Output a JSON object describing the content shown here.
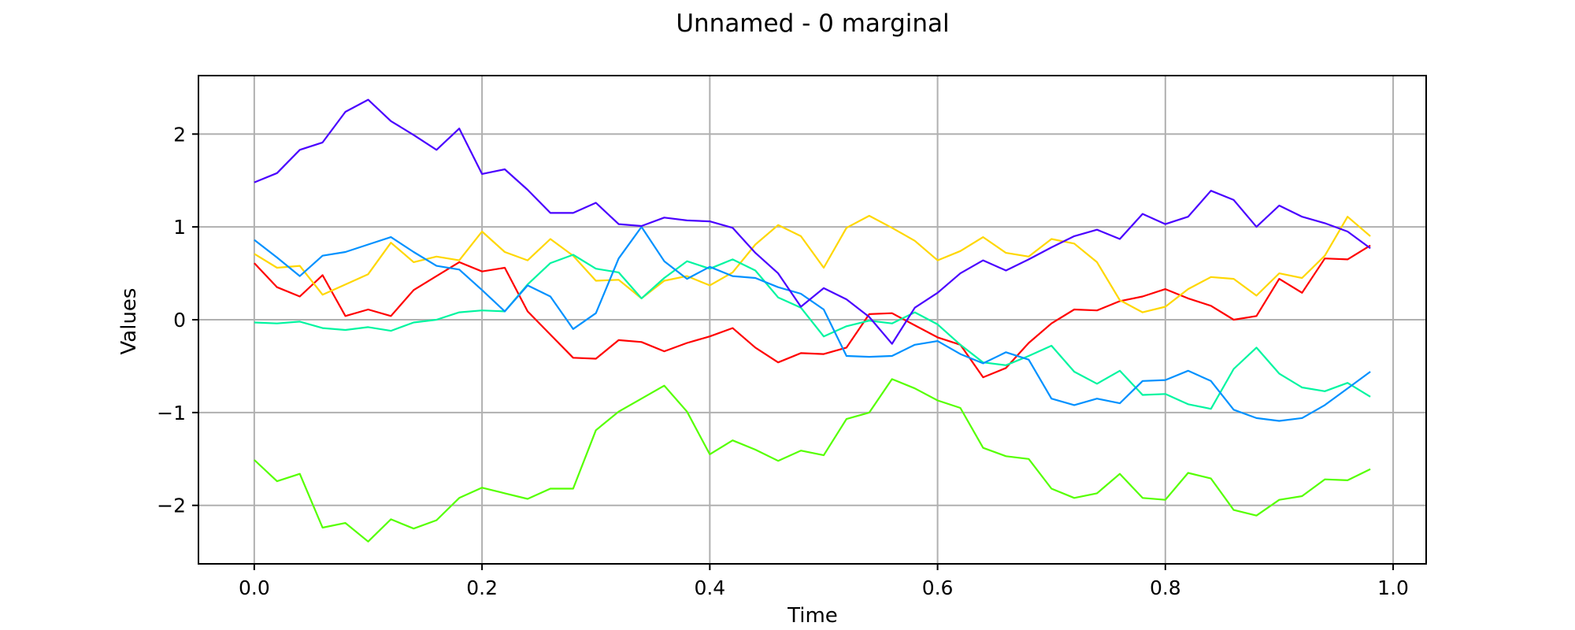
{
  "chart_data": {
    "type": "line",
    "title": "Unnamed - 0 marginal",
    "xlabel": "Time",
    "ylabel": "Values",
    "xlim": [
      -0.049,
      1.029
    ],
    "ylim": [
      -2.63,
      2.63
    ],
    "xticks": [
      0.0,
      0.2,
      0.4,
      0.6,
      0.8,
      1.0
    ],
    "xtick_labels": [
      "0.0",
      "0.2",
      "0.4",
      "0.6",
      "0.8",
      "1.0"
    ],
    "yticks": [
      -2,
      -1,
      0,
      1,
      2
    ],
    "ytick_labels": [
      "−2",
      "−1",
      "0",
      "1",
      "2"
    ],
    "grid": true,
    "legend": null,
    "x": [
      0.0,
      0.02,
      0.04,
      0.06,
      0.08,
      0.1,
      0.12,
      0.14,
      0.16,
      0.18,
      0.2,
      0.22,
      0.24,
      0.26,
      0.28,
      0.3,
      0.32,
      0.34,
      0.36,
      0.38,
      0.4,
      0.42,
      0.44,
      0.46,
      0.48,
      0.5,
      0.52,
      0.54,
      0.56,
      0.58,
      0.6,
      0.62,
      0.64,
      0.66,
      0.68,
      0.7,
      0.72,
      0.74,
      0.76,
      0.78,
      0.8,
      0.82,
      0.84,
      0.86,
      0.88,
      0.9,
      0.92,
      0.94,
      0.96,
      0.98
    ],
    "series": [
      {
        "color": "#ff0000",
        "values": [
          0.61,
          0.35,
          0.25,
          0.48,
          0.04,
          0.11,
          0.04,
          0.32,
          0.47,
          0.62,
          0.52,
          0.56,
          0.09,
          -0.16,
          -0.41,
          -0.42,
          -0.22,
          -0.24,
          -0.34,
          -0.25,
          -0.18,
          -0.09,
          -0.3,
          -0.46,
          -0.36,
          -0.37,
          -0.3,
          0.06,
          0.07,
          -0.06,
          -0.19,
          -0.27,
          -0.62,
          -0.52,
          -0.25,
          -0.04,
          0.11,
          0.1,
          0.2,
          0.25,
          0.33,
          0.23,
          0.15,
          0.0,
          0.04,
          0.44,
          0.29,
          0.66,
          0.65,
          0.8
        ]
      },
      {
        "color": "#ffd700",
        "values": [
          0.71,
          0.56,
          0.58,
          0.27,
          0.38,
          0.49,
          0.83,
          0.62,
          0.68,
          0.64,
          0.95,
          0.73,
          0.64,
          0.87,
          0.69,
          0.42,
          0.43,
          0.23,
          0.42,
          0.47,
          0.37,
          0.51,
          0.81,
          1.02,
          0.9,
          0.56,
          0.99,
          1.12,
          0.99,
          0.85,
          0.64,
          0.74,
          0.89,
          0.72,
          0.68,
          0.87,
          0.82,
          0.62,
          0.21,
          0.08,
          0.14,
          0.33,
          0.46,
          0.44,
          0.26,
          0.5,
          0.45,
          0.69,
          1.11,
          0.9
        ]
      },
      {
        "color": "#55ff00",
        "values": [
          -1.51,
          -1.74,
          -1.66,
          -2.24,
          -2.19,
          -2.39,
          -2.15,
          -2.25,
          -2.16,
          -1.92,
          -1.81,
          -1.87,
          -1.93,
          -1.82,
          -1.82,
          -1.19,
          -0.99,
          -0.85,
          -0.71,
          -0.99,
          -1.45,
          -1.3,
          -1.4,
          -1.52,
          -1.41,
          -1.46,
          -1.07,
          -1.0,
          -0.64,
          -0.74,
          -0.87,
          -0.95,
          -1.38,
          -1.47,
          -1.5,
          -1.82,
          -1.92,
          -1.87,
          -1.66,
          -1.92,
          -1.94,
          -1.65,
          -1.71,
          -2.05,
          -2.11,
          -1.94,
          -1.9,
          -1.72,
          -1.73,
          -1.61
        ]
      },
      {
        "color": "#00f5a0",
        "values": [
          -0.03,
          -0.04,
          -0.02,
          -0.09,
          -0.11,
          -0.08,
          -0.12,
          -0.03,
          0.0,
          0.08,
          0.1,
          0.09,
          0.38,
          0.61,
          0.7,
          0.55,
          0.51,
          0.23,
          0.45,
          0.63,
          0.55,
          0.65,
          0.53,
          0.24,
          0.13,
          -0.18,
          -0.07,
          -0.01,
          -0.04,
          0.08,
          -0.05,
          -0.27,
          -0.46,
          -0.49,
          -0.39,
          -0.28,
          -0.56,
          -0.69,
          -0.55,
          -0.81,
          -0.8,
          -0.91,
          -0.96,
          -0.53,
          -0.3,
          -0.58,
          -0.73,
          -0.77,
          -0.68,
          -0.83
        ]
      },
      {
        "color": "#0091ff",
        "values": [
          0.86,
          0.67,
          0.47,
          0.69,
          0.73,
          0.81,
          0.89,
          0.73,
          0.58,
          0.54,
          0.32,
          0.09,
          0.37,
          0.25,
          -0.1,
          0.07,
          0.66,
          1.0,
          0.63,
          0.44,
          0.57,
          0.47,
          0.45,
          0.35,
          0.28,
          0.11,
          -0.39,
          -0.4,
          -0.39,
          -0.27,
          -0.23,
          -0.37,
          -0.47,
          -0.35,
          -0.43,
          -0.85,
          -0.92,
          -0.85,
          -0.9,
          -0.66,
          -0.65,
          -0.55,
          -0.66,
          -0.97,
          -1.06,
          -1.09,
          -1.06,
          -0.92,
          -0.74,
          -0.56
        ]
      },
      {
        "color": "#4a00ff",
        "values": [
          1.48,
          1.58,
          1.83,
          1.91,
          2.24,
          2.37,
          2.14,
          1.99,
          1.83,
          2.06,
          1.57,
          1.62,
          1.4,
          1.15,
          1.15,
          1.26,
          1.03,
          1.01,
          1.1,
          1.07,
          1.06,
          0.99,
          0.72,
          0.5,
          0.14,
          0.34,
          0.22,
          0.03,
          -0.26,
          0.13,
          0.29,
          0.5,
          0.64,
          0.53,
          0.65,
          0.78,
          0.9,
          0.97,
          0.87,
          1.14,
          1.03,
          1.11,
          1.39,
          1.29,
          1.0,
          1.23,
          1.11,
          1.04,
          0.95,
          0.77
        ]
      }
    ]
  }
}
